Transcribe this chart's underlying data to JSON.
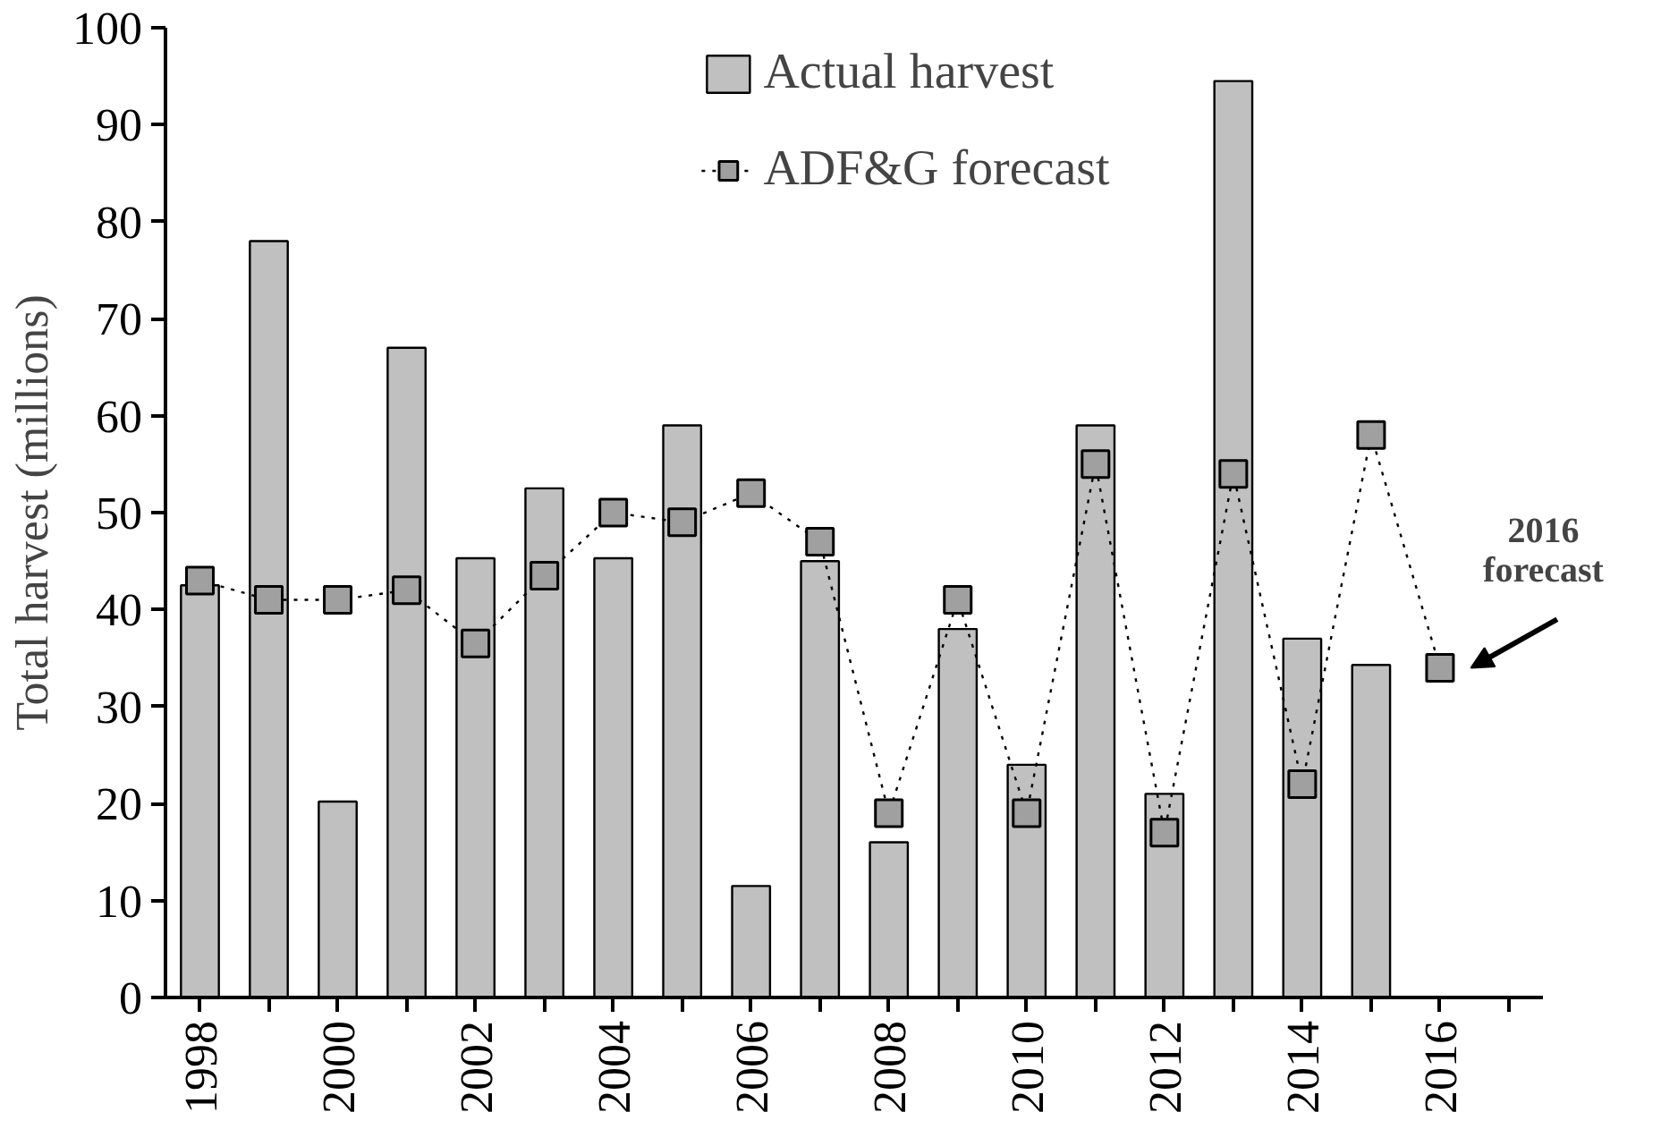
{
  "chart_data": {
    "type": "bar",
    "ylabel": "Total harvest (millions)",
    "x": [
      1998,
      1999,
      2000,
      2001,
      2002,
      2003,
      2004,
      2005,
      2006,
      2007,
      2008,
      2009,
      2010,
      2011,
      2012,
      2013,
      2014,
      2015,
      2016
    ],
    "xlim": [
      1997.5,
      2017.5
    ],
    "xticks": [
      {
        "value": 1998,
        "label": "1998"
      },
      {
        "value": 1999,
        "label": null
      },
      {
        "value": 2000,
        "label": "2000"
      },
      {
        "value": 2001,
        "label": null
      },
      {
        "value": 2002,
        "label": "2002"
      },
      {
        "value": 2003,
        "label": null
      },
      {
        "value": 2004,
        "label": "2004"
      },
      {
        "value": 2005,
        "label": null
      },
      {
        "value": 2006,
        "label": "2006"
      },
      {
        "value": 2007,
        "label": null
      },
      {
        "value": 2008,
        "label": "2008"
      },
      {
        "value": 2009,
        "label": null
      },
      {
        "value": 2010,
        "label": "2010"
      },
      {
        "value": 2011,
        "label": null
      },
      {
        "value": 2012,
        "label": "2012"
      },
      {
        "value": 2013,
        "label": null
      },
      {
        "value": 2014,
        "label": "2014"
      },
      {
        "value": 2015,
        "label": null
      },
      {
        "value": 2016,
        "label": "2016"
      },
      {
        "value": 2017,
        "label": null
      }
    ],
    "ylim": [
      0,
      100
    ],
    "yticks": [
      0,
      10,
      20,
      30,
      40,
      50,
      60,
      70,
      80,
      90,
      100
    ],
    "series": [
      {
        "name": "Actual harvest",
        "color": "#c0c0c0",
        "values": [
          42.5,
          78,
          20.2,
          67,
          45.3,
          52.5,
          45.3,
          59,
          11.5,
          45,
          16,
          38,
          24,
          59,
          21,
          94.5,
          37,
          34.3,
          null
        ]
      },
      {
        "name": "ADF&G forecast",
        "type": "line",
        "color": "#000000",
        "marker": "square",
        "line_style": "dotted",
        "values": [
          43,
          41,
          41,
          42,
          36.5,
          43.5,
          50,
          49,
          52,
          47,
          19,
          41,
          19,
          55,
          17,
          54,
          22,
          58,
          34
        ]
      }
    ],
    "legend": "top",
    "grid": false,
    "annotations": [
      {
        "text": "2016 forecast",
        "x": 2016,
        "y": 34
      }
    ]
  }
}
